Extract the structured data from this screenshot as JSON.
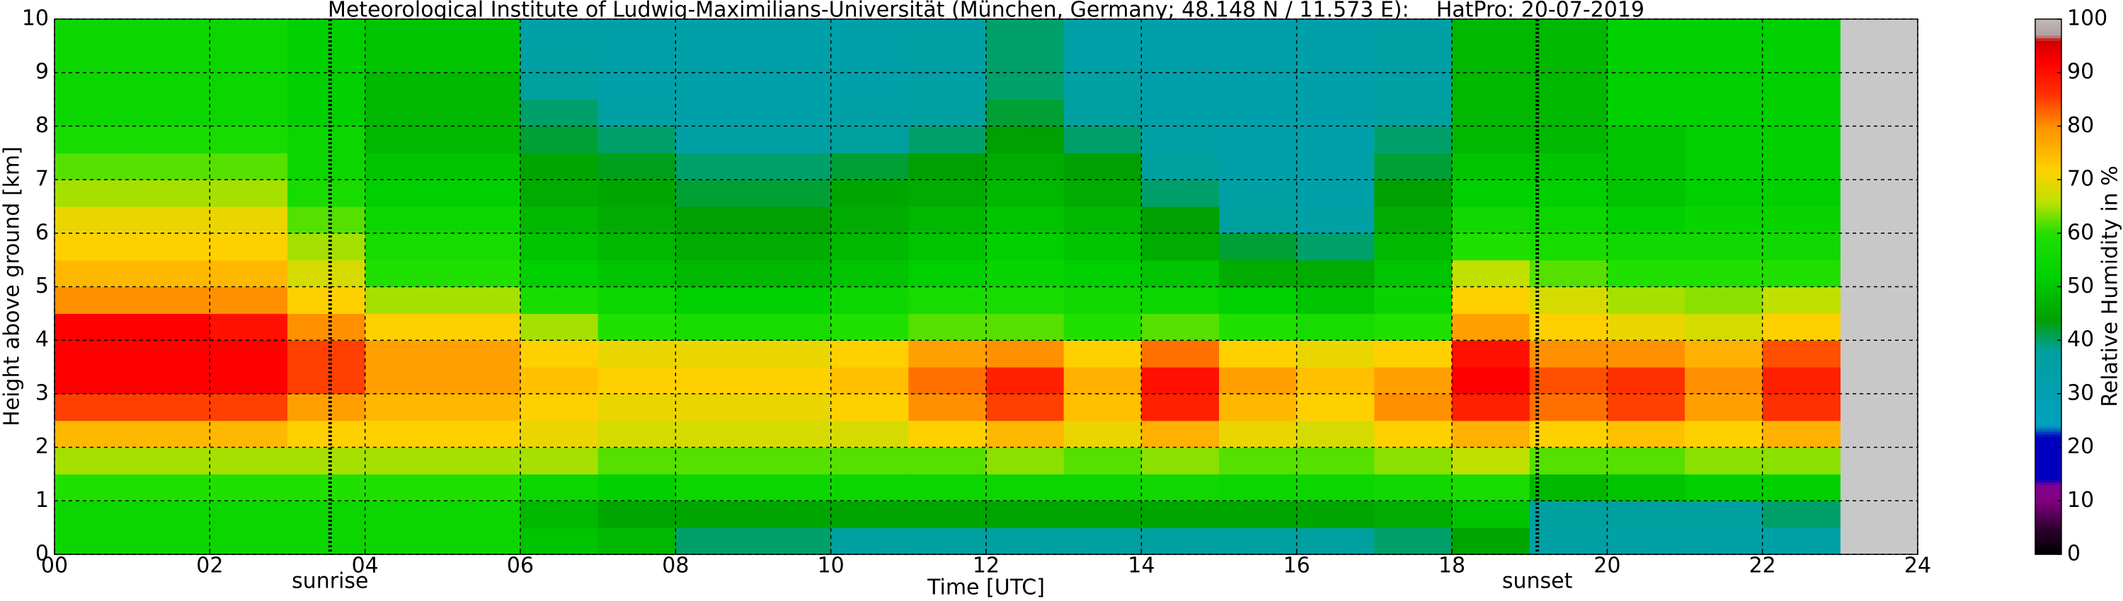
{
  "chart_data": {
    "type": "heatmap",
    "title": "Meteorological Institute of Ludwig-Maximilians-Universität (München, Germany; 48.148 N / 11.573 E):    HatPro: 20-07-2019",
    "x_label": "Time [UTC]",
    "y_label": "Height above ground [km]",
    "colorbar_label": "Relative Humidity in %",
    "xlim": [
      0,
      24
    ],
    "ylim": [
      0,
      10
    ],
    "xticks": [
      {
        "value": 0,
        "label": "00"
      },
      {
        "value": 2,
        "label": "02"
      },
      {
        "value": 4,
        "label": "04"
      },
      {
        "value": 6,
        "label": "06"
      },
      {
        "value": 8,
        "label": "08"
      },
      10,
      12,
      14,
      16,
      18,
      20,
      22,
      24
    ],
    "yticks": [
      0,
      1,
      2,
      3,
      4,
      5,
      6,
      7,
      8,
      9,
      10
    ],
    "grid": true,
    "x_bins": [
      0,
      1,
      2,
      3,
      4,
      5,
      6,
      7,
      8,
      9,
      10,
      11,
      12,
      13,
      14,
      15,
      16,
      17,
      18,
      19,
      20,
      21,
      22,
      23
    ],
    "y_bins": [
      0,
      0.5,
      1,
      1.5,
      2,
      2.5,
      3,
      3.5,
      4,
      4.5,
      5,
      5.5,
      6,
      6.5,
      7,
      7.5,
      8,
      8.5,
      9,
      9.5,
      10
    ],
    "values": [
      [
        55,
        55,
        60,
        65,
        75,
        85,
        92,
        92,
        92,
        80,
        75,
        72,
        70,
        65,
        62,
        58,
        55,
        55,
        55,
        55
      ],
      [
        55,
        55,
        60,
        65,
        75,
        85,
        92,
        92,
        92,
        80,
        75,
        72,
        70,
        65,
        62,
        58,
        55,
        55,
        55,
        55
      ],
      [
        55,
        55,
        60,
        65,
        75,
        85,
        92,
        92,
        90,
        80,
        75,
        72,
        70,
        65,
        62,
        58,
        55,
        55,
        55,
        55
      ],
      [
        55,
        55,
        60,
        65,
        72,
        78,
        85,
        85,
        80,
        72,
        68,
        65,
        62,
        58,
        55,
        55,
        52,
        52,
        52,
        52
      ],
      [
        55,
        55,
        60,
        65,
        72,
        75,
        78,
        78,
        72,
        65,
        60,
        58,
        55,
        52,
        50,
        48,
        48,
        48,
        50,
        50
      ],
      [
        55,
        55,
        60,
        65,
        72,
        75,
        78,
        78,
        72,
        65,
        60,
        58,
        55,
        52,
        50,
        48,
        48,
        48,
        50,
        50
      ],
      [
        50,
        48,
        55,
        65,
        70,
        72,
        74,
        72,
        65,
        58,
        52,
        50,
        48,
        46,
        45,
        42,
        40,
        38,
        36,
        35
      ],
      [
        48,
        45,
        52,
        62,
        68,
        70,
        72,
        70,
        60,
        55,
        50,
        48,
        46,
        45,
        43,
        40,
        36,
        34,
        34,
        34
      ],
      [
        40,
        45,
        55,
        62,
        68,
        70,
        72,
        70,
        58,
        52,
        48,
        46,
        44,
        42,
        40,
        36,
        34,
        34,
        34,
        34
      ],
      [
        40,
        45,
        55,
        62,
        68,
        70,
        72,
        70,
        58,
        52,
        48,
        46,
        44,
        42,
        40,
        36,
        34,
        34,
        34,
        34
      ],
      [
        38,
        45,
        55,
        62,
        68,
        72,
        74,
        72,
        60,
        55,
        50,
        48,
        46,
        45,
        42,
        38,
        36,
        34,
        34,
        34
      ],
      [
        38,
        45,
        55,
        62,
        72,
        80,
        82,
        78,
        62,
        58,
        52,
        50,
        48,
        46,
        44,
        40,
        38,
        36,
        36,
        36
      ],
      [
        38,
        45,
        55,
        64,
        75,
        85,
        88,
        80,
        62,
        58,
        54,
        52,
        50,
        48,
        46,
        44,
        42,
        40,
        40,
        40
      ],
      [
        38,
        45,
        55,
        62,
        70,
        74,
        76,
        72,
        60,
        56,
        52,
        50,
        48,
        46,
        44,
        40,
        38,
        36,
        34,
        34
      ],
      [
        38,
        45,
        56,
        64,
        76,
        88,
        90,
        82,
        62,
        55,
        50,
        46,
        44,
        40,
        38,
        35,
        34,
        33,
        33,
        33
      ],
      [
        38,
        45,
        55,
        62,
        70,
        75,
        78,
        72,
        60,
        52,
        46,
        42,
        38,
        36,
        34,
        33,
        33,
        33,
        33,
        33
      ],
      [
        38,
        45,
        55,
        62,
        68,
        72,
        74,
        70,
        58,
        50,
        46,
        40,
        36,
        34,
        33,
        33,
        33,
        33,
        33,
        33
      ],
      [
        40,
        46,
        56,
        64,
        72,
        80,
        78,
        72,
        60,
        54,
        50,
        48,
        46,
        44,
        42,
        40,
        38,
        36,
        36,
        36
      ],
      [
        45,
        50,
        58,
        66,
        76,
        88,
        92,
        90,
        78,
        72,
        66,
        60,
        56,
        52,
        50,
        48,
        48,
        48,
        48,
        48
      ],
      [
        36,
        38,
        48,
        62,
        72,
        82,
        84,
        80,
        72,
        68,
        62,
        58,
        55,
        52,
        50,
        48,
        48,
        48,
        48,
        48
      ],
      [
        35,
        38,
        50,
        62,
        74,
        85,
        86,
        80,
        70,
        65,
        60,
        56,
        52,
        50,
        50,
        50,
        52,
        52,
        52,
        52
      ],
      [
        35,
        38,
        52,
        64,
        72,
        78,
        80,
        76,
        68,
        64,
        60,
        56,
        54,
        52,
        52,
        52,
        52,
        52,
        52,
        52
      ],
      [
        35,
        40,
        52,
        64,
        76,
        86,
        88,
        84,
        72,
        66,
        60,
        56,
        54,
        52,
        52,
        52,
        52,
        52,
        52,
        52
      ]
    ],
    "nodata_color": "#c8c8c8",
    "colorbar_lim": [
      0,
      100
    ],
    "colorbar_ticks": [
      0,
      10,
      20,
      30,
      40,
      50,
      60,
      70,
      80,
      90,
      100
    ],
    "colormap": [
      {
        "value": 0,
        "color": "#000000"
      },
      {
        "value": 5,
        "color": "#300030"
      },
      {
        "value": 10,
        "color": "#800080"
      },
      {
        "value": 13,
        "color": "#800090"
      },
      {
        "value": 14,
        "color": "#0000c0"
      },
      {
        "value": 22,
        "color": "#0000c0"
      },
      {
        "value": 24,
        "color": "#00a0c0"
      },
      {
        "value": 38,
        "color": "#00a0a0"
      },
      {
        "value": 44,
        "color": "#00a000"
      },
      {
        "value": 52,
        "color": "#00d000"
      },
      {
        "value": 60,
        "color": "#20e000"
      },
      {
        "value": 66,
        "color": "#c0e000"
      },
      {
        "value": 72,
        "color": "#ffd000"
      },
      {
        "value": 80,
        "color": "#ff9000"
      },
      {
        "value": 86,
        "color": "#ff3000"
      },
      {
        "value": 92,
        "color": "#ff0000"
      },
      {
        "value": 96,
        "color": "#d00000"
      },
      {
        "value": 97,
        "color": "#b0a0a0"
      },
      {
        "value": 100,
        "color": "#c0b8b8"
      }
    ],
    "annotations": [
      {
        "text": "sunrise",
        "x": 3.55
      },
      {
        "text": "sunset",
        "x": 19.1
      }
    ]
  }
}
